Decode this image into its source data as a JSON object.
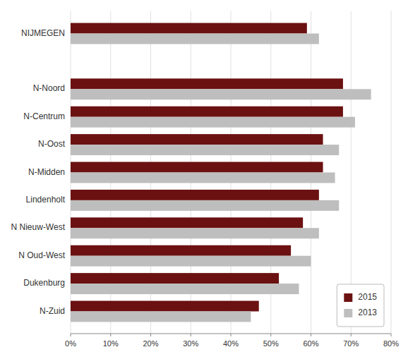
{
  "chart_data": {
    "type": "bar",
    "orientation": "horizontal",
    "categories": [
      "N-Zuid",
      "Dukenburg",
      "N Oud-West",
      "N Nieuw-West",
      "Lindenholt",
      "N-Midden",
      "N-Oost",
      "N-Centrum",
      "N-Noord",
      null,
      "NIJMEGEN"
    ],
    "series": [
      {
        "name": "2015",
        "color": "#6B1111",
        "values": [
          47,
          52,
          55,
          58,
          62,
          63,
          63,
          68,
          68,
          null,
          59
        ]
      },
      {
        "name": "2013",
        "color": "#BEBEBE",
        "values": [
          45,
          57,
          60,
          62,
          67,
          66,
          67,
          71,
          75,
          null,
          62
        ]
      }
    ],
    "xlim": [
      0,
      80
    ],
    "xticks": [
      {
        "value": 0,
        "label": "0%"
      },
      {
        "value": 10,
        "label": "10%"
      },
      {
        "value": 20,
        "label": "20%"
      },
      {
        "value": 30,
        "label": "30%"
      },
      {
        "value": 40,
        "label": "40%"
      },
      {
        "value": 50,
        "label": "50%"
      },
      {
        "value": 60,
        "label": "60%"
      },
      {
        "value": 70,
        "label": "70%"
      },
      {
        "value": 80,
        "label": "80%"
      }
    ],
    "grid": true,
    "legend": "lower right"
  }
}
